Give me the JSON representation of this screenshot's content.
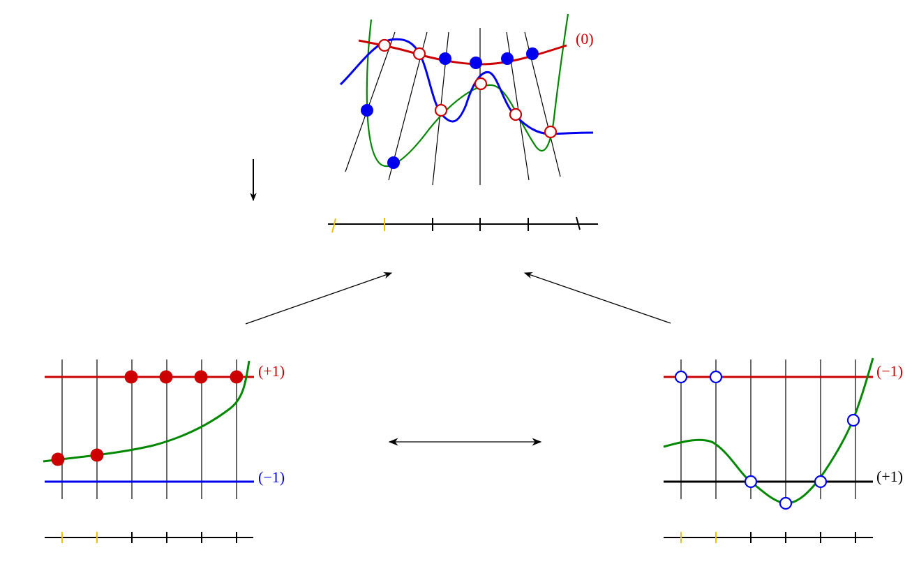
{
  "colors": {
    "red": "#cc0000",
    "blue": "#0000ee",
    "green": "#008800",
    "black": "#000000",
    "yellow": "#f0c000"
  },
  "labels": {
    "top_red_curve": "(0)",
    "left_red_line": "(+1)",
    "left_blue_line": "(−1)",
    "right_red_line": "(−1)",
    "right_black_line": "(+1)"
  }
}
